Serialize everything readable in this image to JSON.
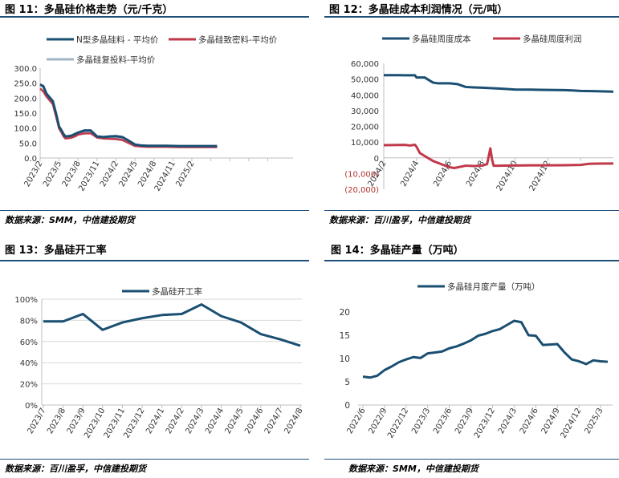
{
  "colors": {
    "navy": "#1a4f72",
    "red": "#c0394b",
    "gray": "#9fb4c4",
    "rule": "#1f4e79",
    "grid": "#d9d9d9",
    "axis": "#bfbfbf"
  },
  "panels": {
    "p11": {
      "title": "图 11：多晶硅价格走势（元/千克）",
      "source": "数据来源：SMM，中信建投期货"
    },
    "p12": {
      "title": "图 12：多晶硅成本利润情况（元/吨）",
      "source": "数据来源：百川盈孚，中信建投期货"
    },
    "p13": {
      "title": "图 13：多晶硅开工率",
      "source": "数据来源：百川盈孚，中信建投期货"
    },
    "p14": {
      "title": "图 14：多晶硅产量（万吨）",
      "source": "数据来源：SMM，中信建投期货"
    }
  },
  "chart_data": [
    {
      "id": "p11",
      "type": "line",
      "ylim": [
        0,
        300
      ],
      "yticks": [
        "0.0",
        "50.0",
        "100.0",
        "150.0",
        "200.0",
        "250.0",
        "300.0"
      ],
      "ytick_values": [
        0,
        50,
        100,
        150,
        200,
        250,
        300
      ],
      "xlim": [
        0,
        40
      ],
      "xtick_positions": [
        0,
        3,
        6,
        9,
        12,
        15,
        18,
        21,
        24,
        27,
        30,
        33,
        36
      ],
      "xtick_labels": [
        "2023/2",
        "2023/5",
        "2023/8",
        "2023/11",
        "2024/2",
        "2024/5",
        "2024/8",
        "2024/11",
        "2025/2"
      ],
      "xtick_label_positions": [
        0,
        3,
        6,
        9,
        12,
        15,
        18,
        21,
        24
      ],
      "x": [
        0,
        0.5,
        1,
        2,
        2.5,
        3,
        3.3,
        3.7,
        4,
        4.5,
        5,
        5.5,
        6,
        7,
        8,
        9,
        10,
        11,
        12,
        13,
        14,
        15,
        16,
        17,
        18,
        20,
        22,
        24,
        26,
        28
      ],
      "series": [
        {
          "name": "N型多晶硅料 - 平均价",
          "color": "#1a4f72",
          "values": [
            245,
            240,
            215,
            190,
            150,
            105,
            95,
            80,
            72,
            73,
            75,
            80,
            85,
            92,
            92,
            72,
            70,
            72,
            73,
            70,
            58,
            45,
            42,
            41,
            41,
            41,
            40,
            40,
            40,
            40
          ]
        },
        {
          "name": "多晶硅致密料-平均价",
          "color": "#c0394b",
          "values": [
            232,
            222,
            205,
            180,
            140,
            98,
            88,
            72,
            65,
            66,
            68,
            72,
            78,
            82,
            82,
            68,
            65,
            64,
            63,
            60,
            50,
            40,
            38,
            37,
            37,
            37,
            36,
            36,
            36,
            36
          ]
        },
        {
          "name": "多晶硅复投料-平均价",
          "color": "#9fb4c4",
          "values": [
            248,
            236,
            210,
            185,
            145,
            100,
            90,
            76,
            68,
            70,
            72,
            76,
            82,
            87,
            86,
            70,
            67,
            68,
            68,
            65,
            55,
            43,
            40,
            39,
            39,
            38,
            38,
            37,
            37,
            37
          ]
        }
      ],
      "legend": "top"
    },
    {
      "id": "p12",
      "type": "line",
      "ylim": [
        -20000,
        60000
      ],
      "yticks": [
        "(20,000)",
        "(10,000)",
        "0",
        "10,000",
        "20,000",
        "30,000",
        "40,000",
        "50,000",
        "60,000"
      ],
      "ytick_values": [
        -20000,
        -10000,
        0,
        10000,
        20000,
        30000,
        40000,
        50000,
        60000
      ],
      "xlim": [
        0,
        14
      ],
      "xtick_positions": [
        0,
        2,
        4,
        6,
        8,
        10,
        12
      ],
      "xtick_labels": [
        "2024/2",
        "2024/4",
        "2024/6",
        "2024/8",
        "2024/10",
        "2024/12"
      ],
      "xtick_label_positions": [
        0,
        2,
        4,
        6,
        8,
        10
      ],
      "series": [
        {
          "name": "多晶硅周度成本",
          "color": "#1a4f72",
          "x": [
            0,
            1,
            1.2,
            1.9,
            2,
            2.5,
            3,
            3.3,
            4,
            4.5,
            5,
            5.5,
            6,
            7,
            8,
            9,
            9.5,
            10,
            11,
            11.5,
            12,
            13,
            14
          ],
          "values": [
            52500,
            52500,
            52400,
            52400,
            51000,
            51000,
            47800,
            47300,
            47300,
            46800,
            45000,
            44700,
            44500,
            44000,
            43400,
            43300,
            43200,
            43100,
            43000,
            42800,
            42500,
            42300,
            42000
          ]
        },
        {
          "name": "多晶硅周度利润",
          "color": "#c0394b",
          "x": [
            0,
            1.3,
            1.6,
            1.9,
            2,
            2.2,
            3,
            3.5,
            4,
            4.3,
            5,
            5.5,
            6,
            6.3,
            6.5,
            6.6,
            6.7,
            7,
            8,
            9,
            10,
            11,
            12,
            12.5,
            13,
            14
          ],
          "values": [
            8000,
            8200,
            7800,
            8300,
            7000,
            3000,
            -2000,
            -4000,
            -6000,
            -6500,
            -5000,
            -5200,
            -5000,
            -4000,
            6000,
            -1000,
            -5000,
            -5000,
            -4900,
            -4800,
            -4800,
            -4700,
            -4500,
            -3800,
            -3700,
            -3600
          ]
        }
      ],
      "legend": "top"
    },
    {
      "id": "p13",
      "type": "line",
      "ylim": [
        0,
        100
      ],
      "yticks": [
        "0%",
        "20%",
        "40%",
        "60%",
        "80%",
        "100%"
      ],
      "ytick_values": [
        0,
        20,
        40,
        60,
        80,
        100
      ],
      "categories": [
        "2023/7",
        "2023/8",
        "2023/9",
        "2023/10",
        "2023/11",
        "2023/12",
        "2024/1",
        "2024/2",
        "2024/3",
        "2024/4",
        "2024/5",
        "2024/6",
        "2024/7",
        "2024/8"
      ],
      "series": [
        {
          "name": "多晶硅开工率",
          "color": "#1a4f72",
          "values": [
            79,
            79,
            86,
            71,
            78,
            82,
            85,
            86,
            95,
            84,
            78,
            67,
            62,
            56
          ]
        }
      ],
      "legend": "top"
    },
    {
      "id": "p14",
      "type": "line",
      "ylim": [
        0,
        20
      ],
      "yticks": [
        "0",
        "5",
        "10",
        "15",
        "20"
      ],
      "ytick_values": [
        0,
        5,
        10,
        15,
        20
      ],
      "xtick_labels": [
        "2022/6",
        "2022/9",
        "2022/12",
        "2023/3",
        "2023/6",
        "2023/9",
        "2023/12",
        "2024/3",
        "2024/6",
        "2024/9",
        "2024/12",
        "2025/3"
      ],
      "categories": [
        "2022/6",
        "2022/7",
        "2022/8",
        "2022/9",
        "2022/10",
        "2022/11",
        "2022/12",
        "2023/1",
        "2023/2",
        "2023/3",
        "2023/4",
        "2023/5",
        "2023/6",
        "2023/7",
        "2023/8",
        "2023/9",
        "2023/10",
        "2023/11",
        "2023/12",
        "2024/1",
        "2024/2",
        "2024/3",
        "2024/4",
        "2024/5",
        "2024/6",
        "2024/7",
        "2024/8",
        "2024/9",
        "2024/10",
        "2024/11",
        "2024/12",
        "2025/1",
        "2025/2",
        "2025/3",
        "2025/4"
      ],
      "series": [
        {
          "name": "多晶硅月度产量（万吨）",
          "color": "#1a4f72",
          "values": [
            6.1,
            5.9,
            6.3,
            7.5,
            8.3,
            9.2,
            9.8,
            10.3,
            10.1,
            11.1,
            11.3,
            11.5,
            12.2,
            12.6,
            13.2,
            13.9,
            14.9,
            15.3,
            15.9,
            16.3,
            17.2,
            18.1,
            17.8,
            15.0,
            14.9,
            12.9,
            13.0,
            13.1,
            11.3,
            9.8,
            9.4,
            8.8,
            9.6,
            9.4,
            9.3
          ]
        }
      ],
      "legend": "top"
    }
  ]
}
